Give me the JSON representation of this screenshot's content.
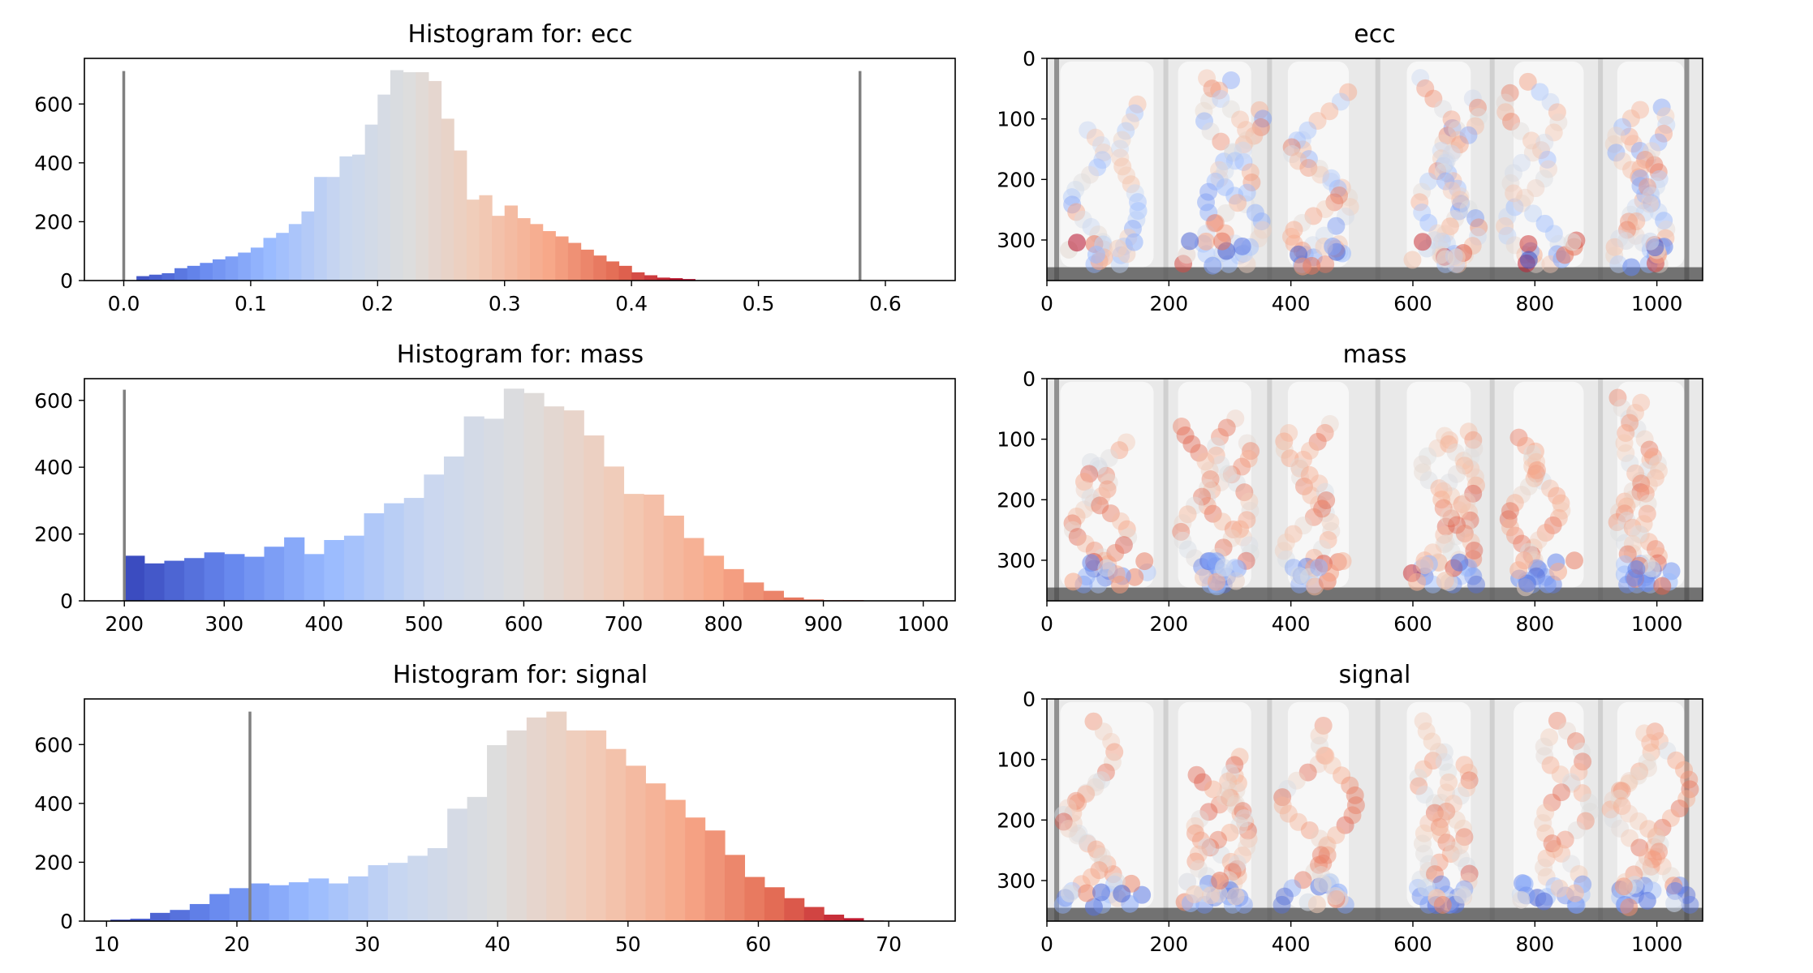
{
  "figure": {
    "histogram_title_prefix": "Histogram for: ",
    "colormap": "coolwarm",
    "colormap_stops": [
      "#3b4cc0",
      "#6788ee",
      "#9abbff",
      "#c9d7f0",
      "#dddddd",
      "#f2cbb7",
      "#f7a889",
      "#e26952",
      "#b40426"
    ],
    "threshold_line_color": "#808080",
    "frame_colors": {
      "background": "#e9e9e9",
      "column": "#f7f7f7",
      "gap": "#b8b8b8",
      "floor": "#4a4a4a"
    }
  },
  "chart_data": [
    {
      "type": "bar",
      "feature": "ecc",
      "title": "Histogram for: ecc",
      "xlabel": "",
      "ylabel": "",
      "xlim": [
        -0.031,
        0.655
      ],
      "ylim": [
        0,
        755
      ],
      "xticks": [
        0.0,
        0.1,
        0.2,
        0.3,
        0.4,
        0.5,
        0.6
      ],
      "xtick_labels": [
        "0.0",
        "0.1",
        "0.2",
        "0.3",
        "0.4",
        "0.5",
        "0.6"
      ],
      "yticks": [
        0,
        200,
        400,
        600
      ],
      "ytick_labels": [
        "0",
        "200",
        "400",
        "600"
      ],
      "bin_start": 0.0,
      "bin_width": 0.01,
      "values": [
        0,
        15,
        20,
        25,
        42,
        50,
        60,
        72,
        82,
        95,
        112,
        145,
        162,
        192,
        235,
        352,
        352,
        422,
        428,
        530,
        632,
        715,
        708,
        708,
        678,
        550,
        442,
        275,
        290,
        220,
        255,
        212,
        192,
        168,
        150,
        128,
        105,
        85,
        65,
        50,
        28,
        18,
        10,
        8,
        5
      ],
      "threshold_lines": [
        0.0,
        0.58
      ],
      "threshold_height": 712
    },
    {
      "type": "bar",
      "feature": "mass",
      "title": "Histogram for: mass",
      "xlabel": "",
      "ylabel": "",
      "xlim": [
        160,
        1032
      ],
      "ylim": [
        0,
        665
      ],
      "xticks": [
        200,
        300,
        400,
        500,
        600,
        700,
        800,
        900,
        1000
      ],
      "xtick_labels": [
        "200",
        "300",
        "400",
        "500",
        "600",
        "700",
        "800",
        "900",
        "1000"
      ],
      "yticks": [
        0,
        200,
        400,
        600
      ],
      "ytick_labels": [
        "0",
        "200",
        "400",
        "600"
      ],
      "bin_start": 200,
      "bin_width": 20,
      "values": [
        135,
        112,
        120,
        128,
        145,
        140,
        132,
        162,
        190,
        140,
        182,
        195,
        262,
        292,
        308,
        378,
        432,
        552,
        545,
        635,
        622,
        582,
        570,
        495,
        402,
        320,
        318,
        255,
        188,
        135,
        95,
        55,
        30,
        10,
        4,
        2,
        2,
        1,
        1,
        0
      ],
      "threshold_lines": [
        200
      ],
      "threshold_height": 632
    },
    {
      "type": "bar",
      "feature": "signal",
      "title": "Histogram for: signal",
      "xlabel": "",
      "ylabel": "",
      "xlim": [
        8.3,
        75.1
      ],
      "ylim": [
        0,
        755
      ],
      "xticks": [
        10,
        20,
        30,
        40,
        50,
        60,
        70
      ],
      "xtick_labels": [
        "10",
        "20",
        "30",
        "40",
        "50",
        "60",
        "70"
      ],
      "yticks": [
        0,
        200,
        400,
        600
      ],
      "ytick_labels": [
        "0",
        "200",
        "400",
        "600"
      ],
      "bin_start": 10.3,
      "bin_width": 1.52,
      "values": [
        5,
        8,
        28,
        38,
        58,
        92,
        112,
        128,
        122,
        132,
        145,
        128,
        152,
        190,
        198,
        222,
        248,
        382,
        422,
        598,
        648,
        692,
        712,
        648,
        648,
        585,
        528,
        468,
        412,
        352,
        308,
        225,
        150,
        115,
        78,
        48,
        22,
        10,
        2
      ],
      "threshold_lines": [
        21
      ],
      "threshold_height": 712
    }
  ],
  "image_panels": [
    {
      "title": "ecc",
      "xticks": [
        "0",
        "200",
        "400",
        "600",
        "800",
        "1000"
      ],
      "yticks": [
        "0",
        "100",
        "200",
        "300"
      ]
    },
    {
      "title": "mass",
      "xticks": [
        "0",
        "200",
        "400",
        "600",
        "800",
        "1000"
      ],
      "yticks": [
        "0",
        "100",
        "200",
        "300"
      ]
    },
    {
      "title": "signal",
      "xticks": [
        "0",
        "200",
        "400",
        "600",
        "800",
        "1000"
      ],
      "yticks": [
        "0",
        "100",
        "200",
        "300"
      ]
    }
  ]
}
